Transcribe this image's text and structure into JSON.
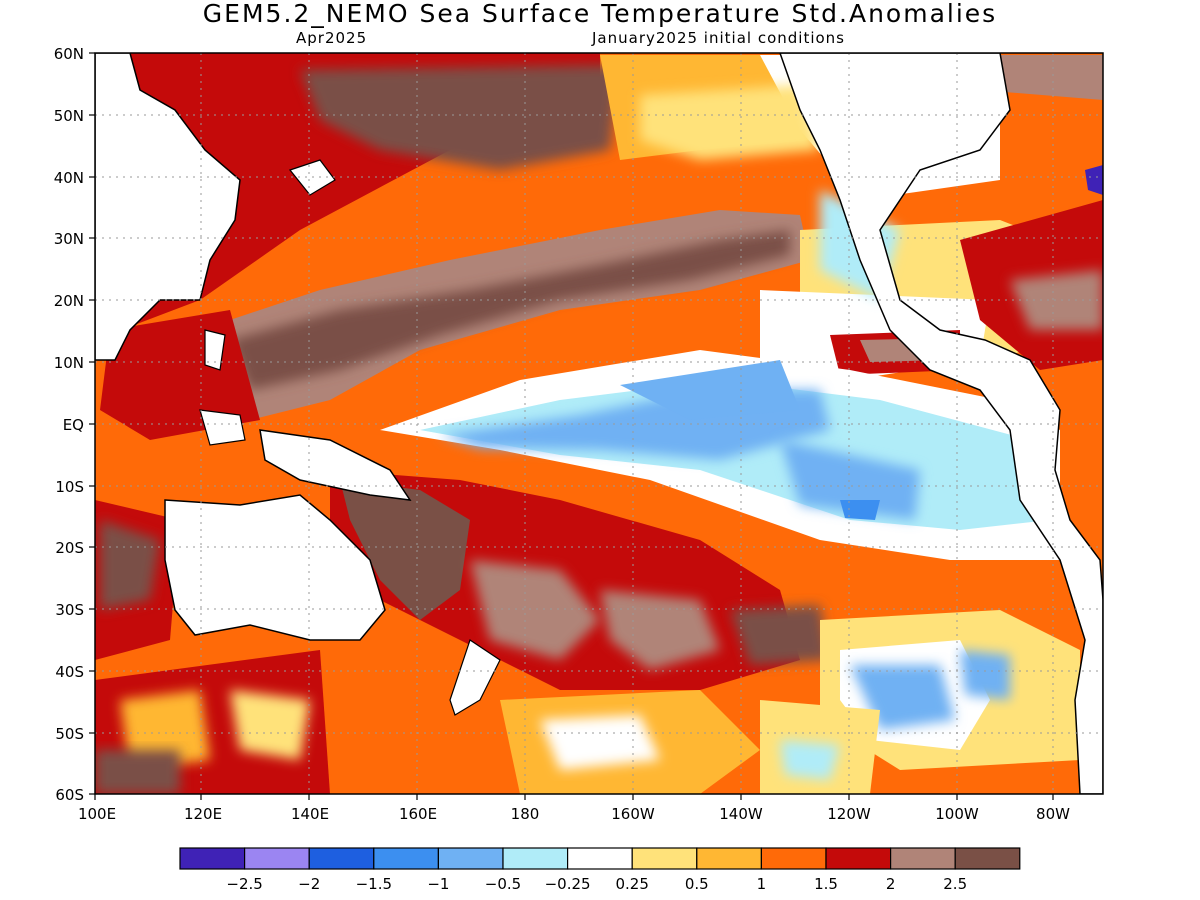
{
  "title": "GEM5.2_NEMO Sea Surface Temperature Std.Anomalies",
  "subtitle_left": "Apr2025",
  "subtitle_right": "January2025 initial conditions",
  "lat_labels": [
    "60N",
    "50N",
    "40N",
    "30N",
    "20N",
    "10N",
    "EQ",
    "10S",
    "20S",
    "30S",
    "40S",
    "50S",
    "60S"
  ],
  "lon_labels": [
    "100E",
    "120E",
    "140E",
    "160E",
    "180",
    "160W",
    "140W",
    "120W",
    "100W",
    "80W"
  ],
  "colorbar": {
    "colors": [
      "#3f22b6",
      "#9b85f2",
      "#1e5fe0",
      "#3c8ff0",
      "#6fb1f3",
      "#b0ecf8",
      "#ffffff",
      "#ffe27a",
      "#ffb733",
      "#ff6a08",
      "#c40a0a",
      "#b08478",
      "#7a5046"
    ],
    "labels": [
      "−2.5",
      "−2",
      "−1.5",
      "−1",
      "−0.5",
      "−0.25",
      "0.25",
      "0.5",
      "1",
      "1.5",
      "2",
      "2.5"
    ]
  }
}
